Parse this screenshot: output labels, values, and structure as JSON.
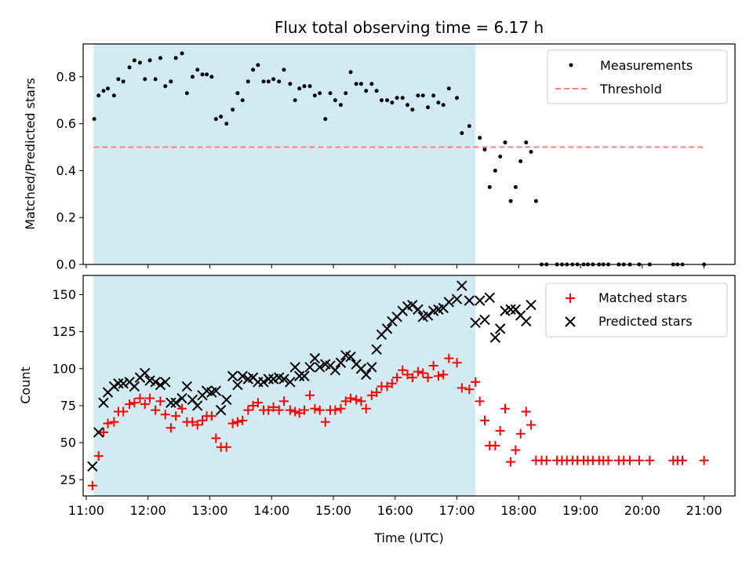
{
  "chart_data": [
    {
      "type": "scatter",
      "title": "Flux total observing time = 6.17 h",
      "xlabel": "",
      "ylabel": "Matched/Predicted stars",
      "xlim": [
        10.95,
        21.5
      ],
      "ylim": [
        0,
        0.94
      ],
      "yticks": [
        "0.0",
        "0.2",
        "0.4",
        "0.6",
        "0.8"
      ],
      "yticks_values": [
        0,
        0.2,
        0.4,
        0.6,
        0.8
      ],
      "observing_window": [
        11.12,
        17.3
      ],
      "observing_window_color": "#add8e6",
      "legend_position": "top-right",
      "threshold": {
        "name": "Threshold",
        "value": 0.5,
        "x_range": [
          11.12,
          21.0
        ],
        "color": "#ff7f7f",
        "style": "dashed"
      },
      "series": [
        {
          "name": "Measurements",
          "color": "#000000",
          "marker": "dot",
          "x": [
            11.13,
            11.2,
            11.28,
            11.35,
            11.45,
            11.52,
            11.6,
            11.7,
            11.78,
            11.87,
            11.95,
            12.03,
            12.12,
            12.2,
            12.28,
            12.37,
            12.45,
            12.55,
            12.63,
            12.72,
            12.8,
            12.88,
            12.95,
            13.03,
            13.1,
            13.18,
            13.27,
            13.37,
            13.45,
            13.53,
            13.62,
            13.7,
            13.78,
            13.87,
            13.95,
            14.03,
            14.12,
            14.2,
            14.3,
            14.38,
            14.45,
            14.53,
            14.62,
            14.7,
            14.78,
            14.87,
            14.95,
            15.03,
            15.12,
            15.2,
            15.28,
            15.37,
            15.45,
            15.53,
            15.62,
            15.7,
            15.78,
            15.87,
            15.95,
            16.03,
            16.12,
            16.2,
            16.28,
            16.37,
            16.45,
            16.53,
            16.62,
            16.7,
            16.78,
            16.87,
            17.0,
            17.08,
            17.2,
            17.37,
            17.45,
            17.53,
            17.62,
            17.7,
            17.78,
            17.87,
            17.95,
            18.03,
            18.12,
            18.2,
            18.28,
            18.37,
            18.45,
            18.62,
            18.7,
            18.78,
            18.87,
            18.95,
            19.05,
            19.12,
            19.2,
            19.3,
            19.37,
            19.45,
            19.62,
            19.7,
            19.8,
            19.95,
            20.12,
            20.5,
            20.57,
            20.65,
            21.0
          ],
          "y": [
            0.62,
            0.72,
            0.74,
            0.75,
            0.72,
            0.79,
            0.78,
            0.84,
            0.87,
            0.86,
            0.79,
            0.87,
            0.79,
            0.88,
            0.76,
            0.78,
            0.88,
            0.9,
            0.73,
            0.8,
            0.83,
            0.81,
            0.81,
            0.8,
            0.62,
            0.63,
            0.6,
            0.66,
            0.73,
            0.7,
            0.78,
            0.83,
            0.85,
            0.78,
            0.78,
            0.79,
            0.78,
            0.83,
            0.77,
            0.7,
            0.75,
            0.76,
            0.76,
            0.72,
            0.73,
            0.62,
            0.73,
            0.7,
            0.68,
            0.73,
            0.82,
            0.77,
            0.77,
            0.74,
            0.77,
            0.74,
            0.7,
            0.7,
            0.69,
            0.71,
            0.71,
            0.68,
            0.66,
            0.72,
            0.72,
            0.67,
            0.72,
            0.69,
            0.68,
            0.75,
            0.71,
            0.56,
            0.59,
            0.54,
            0.49,
            0.33,
            0.4,
            0.46,
            0.52,
            0.27,
            0.33,
            0.44,
            0.52,
            0.48,
            0.27,
            0,
            0,
            0,
            0,
            0,
            0,
            0,
            0,
            0,
            0,
            0,
            0,
            0,
            0,
            0,
            0,
            0,
            0,
            0,
            0,
            0,
            0
          ]
        }
      ]
    },
    {
      "type": "scatter",
      "title": "",
      "xlabel": "Time (UTC)",
      "ylabel": "Count",
      "xlim": [
        10.95,
        21.5
      ],
      "ylim": [
        14,
        163
      ],
      "yticks": [
        "25",
        "50",
        "75",
        "100",
        "125",
        "150"
      ],
      "yticks_values": [
        25,
        50,
        75,
        100,
        125,
        150
      ],
      "xticks": [
        "11:00",
        "12:00",
        "13:00",
        "14:00",
        "15:00",
        "16:00",
        "17:00",
        "18:00",
        "19:00",
        "20:00",
        "21:00"
      ],
      "xticks_values": [
        11,
        12,
        13,
        14,
        15,
        16,
        17,
        18,
        19,
        20,
        21
      ],
      "observing_window": [
        11.12,
        17.3
      ],
      "observing_window_color": "#add8e6",
      "legend_position": "top-right",
      "series": [
        {
          "name": "Matched stars",
          "color": "#ff0000",
          "marker": "plus",
          "x": [
            11.1,
            11.2,
            11.28,
            11.35,
            11.45,
            11.52,
            11.6,
            11.7,
            11.78,
            11.87,
            11.95,
            12.03,
            12.12,
            12.2,
            12.28,
            12.37,
            12.45,
            12.55,
            12.63,
            12.72,
            12.8,
            12.88,
            12.95,
            13.03,
            13.1,
            13.18,
            13.27,
            13.37,
            13.45,
            13.53,
            13.62,
            13.7,
            13.78,
            13.87,
            13.95,
            14.03,
            14.12,
            14.2,
            14.3,
            14.38,
            14.45,
            14.53,
            14.62,
            14.7,
            14.78,
            14.87,
            14.95,
            15.03,
            15.12,
            15.2,
            15.28,
            15.37,
            15.45,
            15.53,
            15.62,
            15.7,
            15.78,
            15.87,
            15.95,
            16.03,
            16.12,
            16.2,
            16.28,
            16.37,
            16.45,
            16.53,
            16.62,
            16.7,
            16.78,
            16.87,
            17.0,
            17.08,
            17.2,
            17.3,
            17.37,
            17.45,
            17.53,
            17.62,
            17.7,
            17.78,
            17.87,
            17.95,
            18.03,
            18.12,
            18.2,
            18.28,
            18.37,
            18.45,
            18.62,
            18.7,
            18.78,
            18.87,
            18.95,
            19.05,
            19.12,
            19.2,
            19.3,
            19.37,
            19.45,
            19.62,
            19.7,
            19.8,
            19.95,
            20.12,
            20.5,
            20.57,
            20.65,
            21.0
          ],
          "y": [
            21,
            41,
            57,
            63,
            64,
            71,
            71,
            76,
            77,
            80,
            76,
            80,
            72,
            78,
            69,
            60,
            68,
            73,
            64,
            64,
            62,
            65,
            68,
            68,
            53,
            47,
            47,
            63,
            64,
            65,
            72,
            75,
            77,
            72,
            72,
            74,
            72,
            78,
            72,
            71,
            70,
            72,
            82,
            73,
            72,
            64,
            72,
            72,
            73,
            78,
            80,
            79,
            78,
            73,
            82,
            84,
            88,
            88,
            90,
            94,
            99,
            96,
            94,
            98,
            97,
            94,
            102,
            95,
            96,
            107,
            104,
            87,
            86,
            91,
            78,
            65,
            48,
            48,
            58,
            73,
            37,
            45,
            56,
            71,
            62,
            38,
            38,
            38,
            38,
            38,
            38,
            38,
            38,
            38,
            38,
            38,
            38,
            38,
            38,
            38,
            38,
            38,
            38,
            38,
            38,
            38,
            38,
            38
          ]
        },
        {
          "name": "Predicted stars",
          "color": "#000000",
          "marker": "cross",
          "x": [
            11.1,
            11.2,
            11.28,
            11.35,
            11.45,
            11.52,
            11.6,
            11.7,
            11.78,
            11.87,
            11.95,
            12.03,
            12.12,
            12.2,
            12.28,
            12.37,
            12.45,
            12.55,
            12.63,
            12.72,
            12.8,
            12.88,
            12.95,
            13.03,
            13.1,
            13.18,
            13.27,
            13.37,
            13.45,
            13.53,
            13.62,
            13.7,
            13.78,
            13.87,
            13.95,
            14.03,
            14.12,
            14.2,
            14.3,
            14.38,
            14.45,
            14.53,
            14.62,
            14.7,
            14.78,
            14.87,
            14.95,
            15.03,
            15.12,
            15.2,
            15.28,
            15.37,
            15.45,
            15.53,
            15.62,
            15.7,
            15.78,
            15.87,
            15.95,
            16.03,
            16.12,
            16.2,
            16.28,
            16.37,
            16.45,
            16.53,
            16.62,
            16.7,
            16.78,
            16.87,
            17.0,
            17.08,
            17.2,
            17.3,
            17.37,
            17.45,
            17.53,
            17.62,
            17.7,
            17.78,
            17.87,
            17.95,
            18.03,
            18.12,
            18.2
          ],
          "y": [
            34,
            57,
            77,
            84,
            88,
            90,
            90,
            91,
            88,
            94,
            97,
            92,
            91,
            89,
            91,
            77,
            77,
            80,
            88,
            79,
            75,
            82,
            85,
            84,
            85,
            72,
            79,
            95,
            89,
            95,
            93,
            94,
            91,
            91,
            93,
            93,
            94,
            93,
            91,
            101,
            95,
            95,
            101,
            107,
            101,
            103,
            102,
            99,
            104,
            109,
            108,
            103,
            100,
            96,
            101,
            113,
            123,
            127,
            132,
            135,
            139,
            142,
            143,
            140,
            135,
            136,
            139,
            140,
            141,
            145,
            147,
            156,
            146,
            131,
            146,
            133,
            148,
            121,
            127,
            139,
            140,
            140,
            136,
            132,
            143
          ]
        }
      ]
    }
  ]
}
